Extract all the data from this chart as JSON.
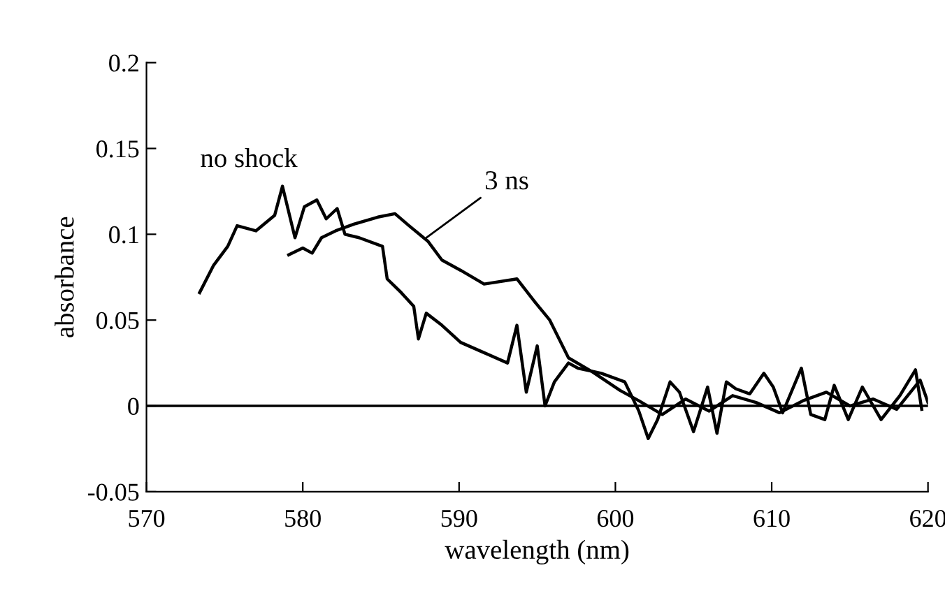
{
  "chart_data": {
    "type": "line",
    "xlabel": "wavelength (nm)",
    "ylabel": "absorbance",
    "xlim": [
      570,
      620
    ],
    "xticks": [
      570,
      580,
      590,
      600,
      610,
      620
    ],
    "ylim": [
      -0.05,
      0.2
    ],
    "yticks": [
      -0.05,
      0,
      0.05,
      0.1,
      0.15,
      0.2
    ],
    "grid": false,
    "legend": false,
    "marker": "none",
    "line_style": "solid",
    "ref_lines": [
      {
        "axis": "y",
        "value": 0,
        "color": "#000000"
      }
    ],
    "annotations": [
      "no shock",
      {
        "text": "3 ns",
        "x": 587.9,
        "y": 0.098
      }
    ],
    "series": [
      {
        "color": "#000000",
        "x": [
          573.4,
          574.3,
          575.2,
          575.8,
          577.0,
          578.2,
          578.7,
          579.5,
          580.1,
          580.9,
          581.5,
          582.2,
          582.7,
          583.6,
          585.1,
          585.4,
          586.3,
          587.1,
          587.4,
          587.9,
          588.9,
          590.1,
          591.6,
          593.1,
          593.7,
          594.3,
          595.0,
          595.5,
          596.1,
          597.0,
          597.6,
          599.1,
          600.6,
          601.5,
          602.1,
          602.7,
          603.5,
          604.1,
          605.0,
          605.9,
          606.5,
          607.1,
          607.7,
          608.6,
          609.5,
          610.1,
          610.7,
          611.9,
          612.5,
          613.4,
          614.0,
          614.9,
          615.8,
          617.0,
          618.2,
          619.2,
          619.6
        ],
        "values": [
          0.066,
          0.082,
          0.093,
          0.105,
          0.102,
          0.111,
          0.128,
          0.098,
          0.116,
          0.12,
          0.109,
          0.115,
          0.1,
          0.098,
          0.093,
          0.074,
          0.066,
          0.058,
          0.039,
          0.054,
          0.047,
          0.037,
          0.031,
          0.025,
          0.047,
          0.008,
          0.035,
          0.0,
          0.014,
          0.025,
          0.022,
          0.019,
          0.014,
          -0.003,
          -0.019,
          -0.008,
          0.014,
          0.008,
          -0.015,
          0.011,
          -0.016,
          0.014,
          0.01,
          0.007,
          0.019,
          0.011,
          -0.004,
          0.022,
          -0.005,
          -0.008,
          0.012,
          -0.008,
          0.011,
          -0.008,
          0.006,
          0.021,
          -0.002
        ]
      },
      {
        "color": "#000000",
        "x": [
          579.1,
          580.0,
          580.6,
          581.2,
          582.1,
          583.3,
          584.8,
          585.9,
          586.8,
          588.0,
          588.9,
          590.1,
          591.6,
          593.7,
          594.9,
          595.8,
          597.0,
          598.5,
          600.3,
          601.5,
          603.0,
          604.5,
          606.0,
          607.5,
          609.0,
          610.5,
          612.0,
          613.5,
          615.0,
          616.5,
          618.0,
          619.5,
          620.0
        ],
        "values": [
          0.088,
          0.092,
          0.089,
          0.098,
          0.102,
          0.106,
          0.11,
          0.112,
          0.105,
          0.096,
          0.085,
          0.079,
          0.071,
          0.074,
          0.06,
          0.05,
          0.028,
          0.02,
          0.009,
          0.003,
          -0.005,
          0.004,
          -0.003,
          0.006,
          0.002,
          -0.004,
          0.003,
          0.008,
          0.0,
          0.004,
          -0.002,
          0.015,
          0.002
        ]
      }
    ]
  }
}
